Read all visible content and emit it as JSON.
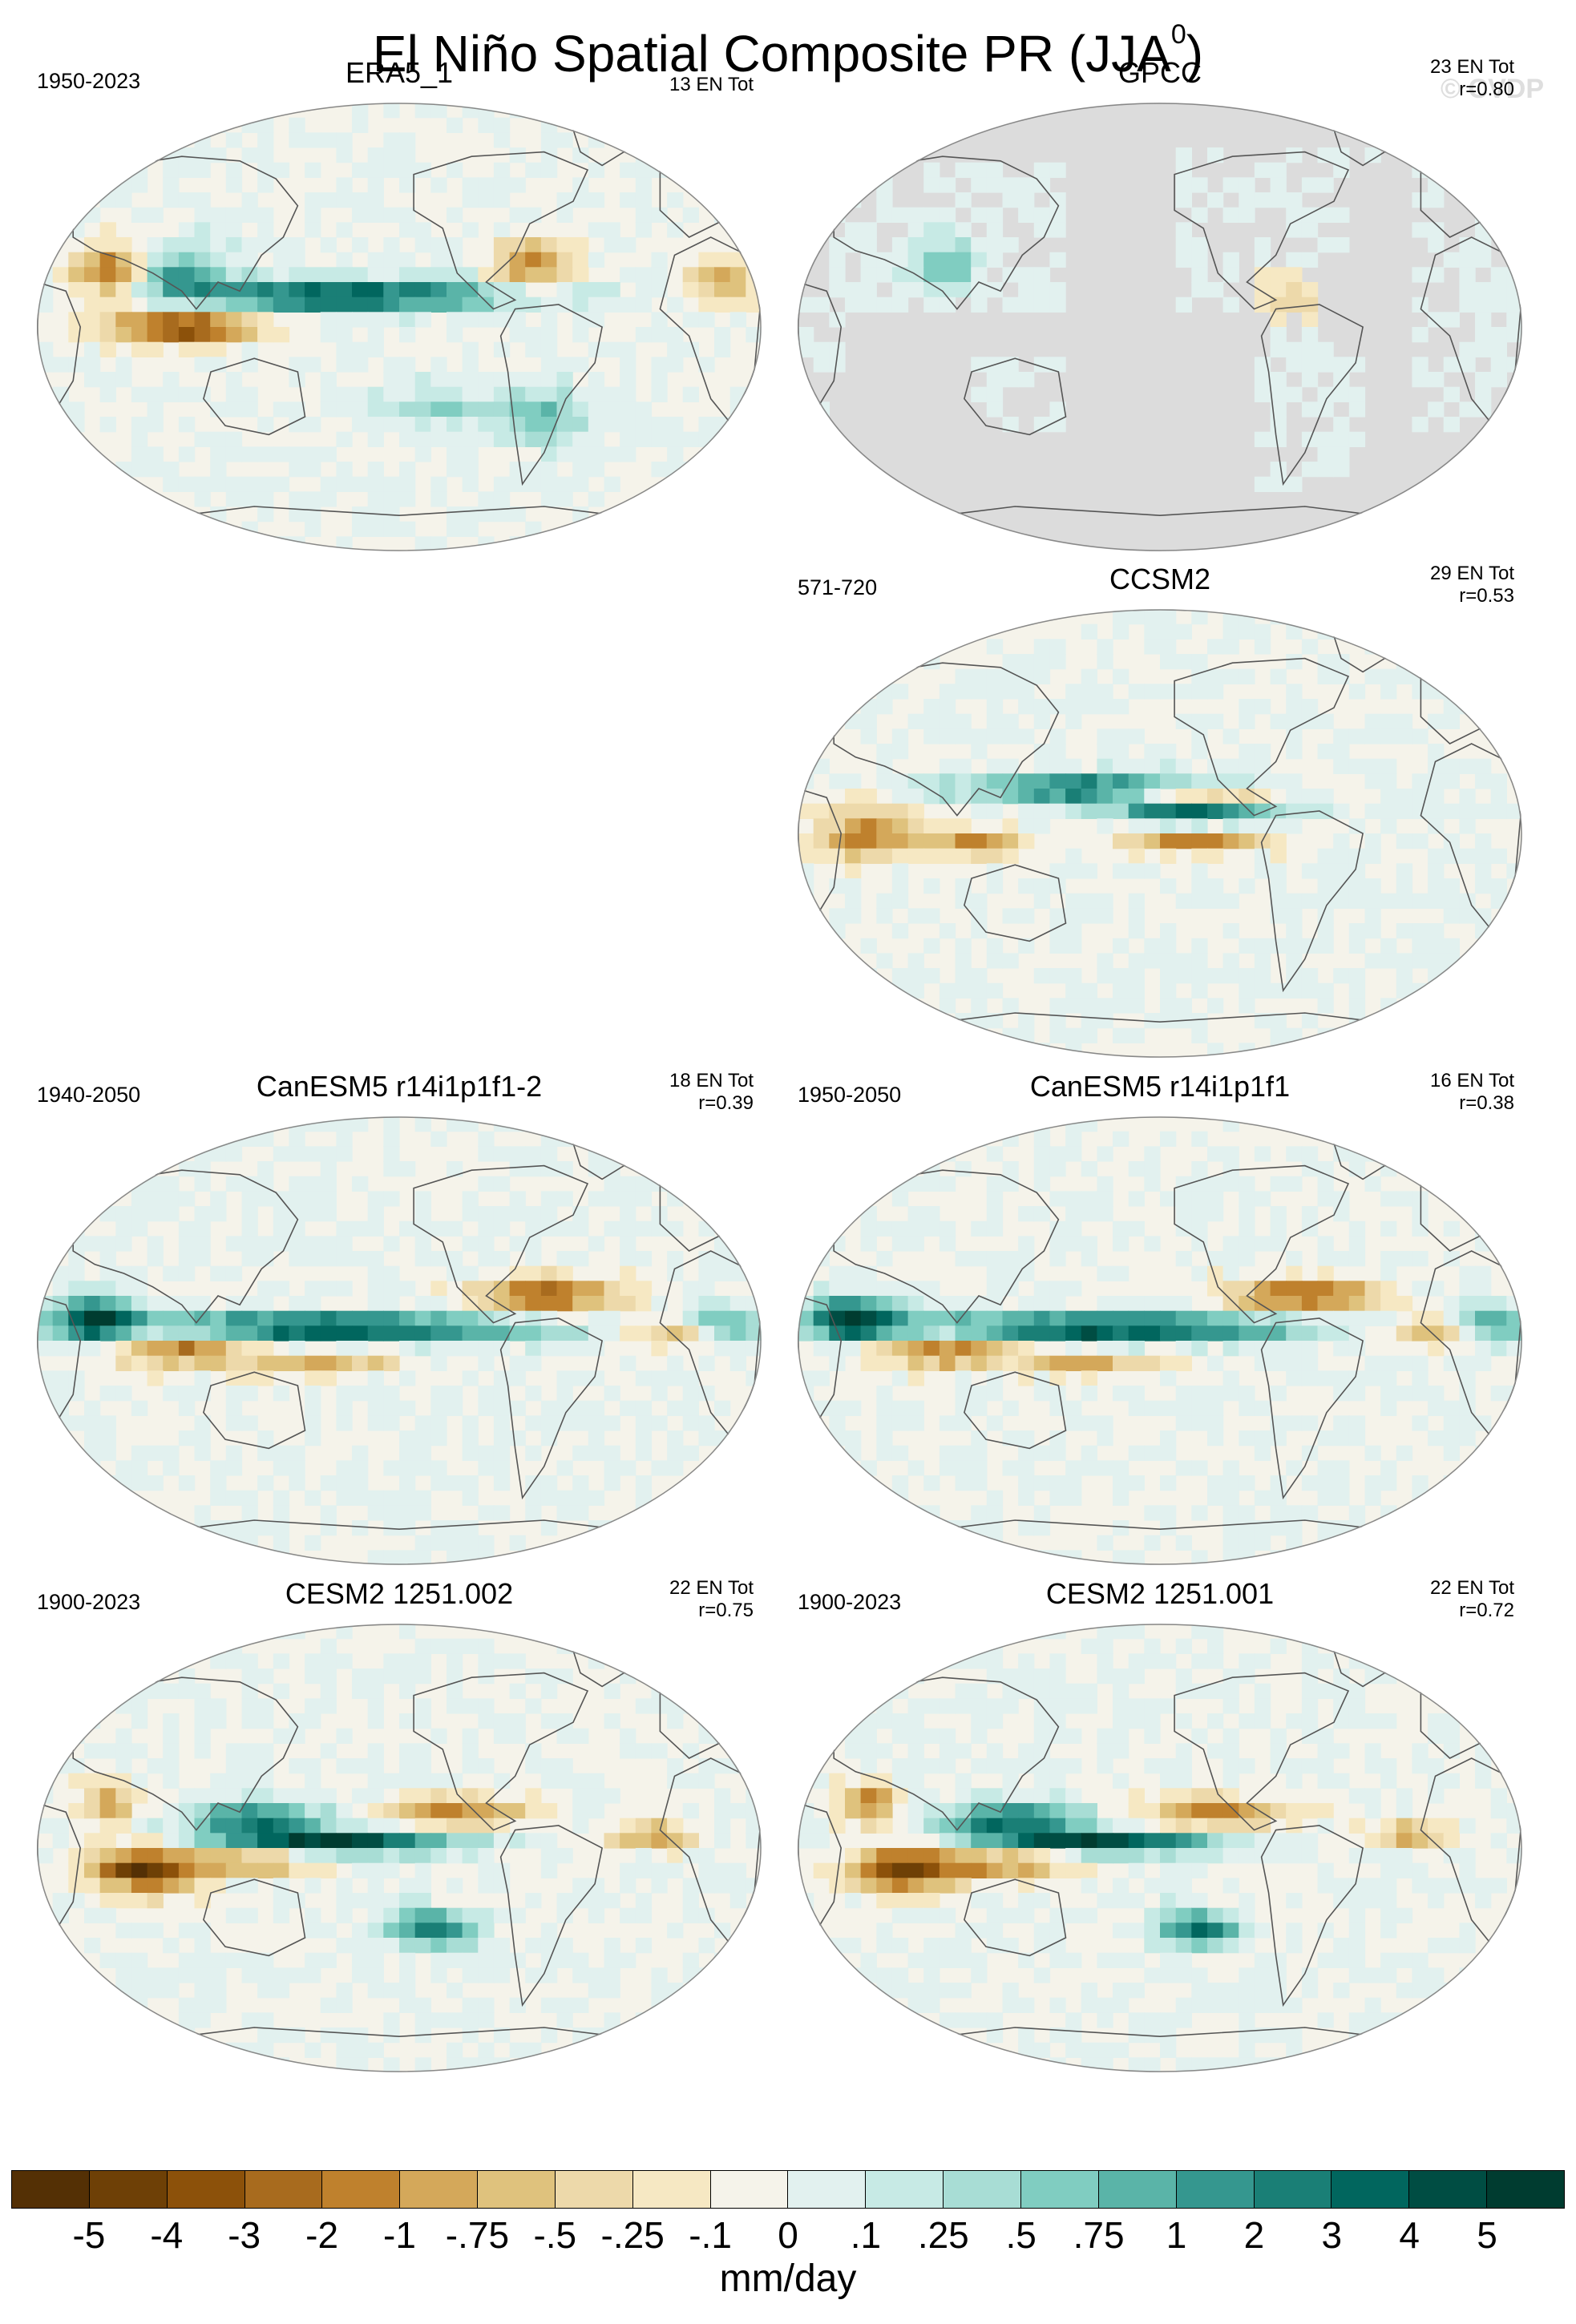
{
  "figure": {
    "title": "El Niño Spatial Composite PR (JJA",
    "title_superscript": "0",
    "title_suffix": ")",
    "watermark": "© CVDP"
  },
  "colors": {
    "land_outline": "#555555",
    "missing": "#dcdcdc",
    "map_border": "#888888"
  },
  "chart_data": {
    "type": "heatmap",
    "variable": "PR",
    "season": "JJA",
    "units": "mm/day",
    "colorbar": {
      "labels": [
        "-5",
        "-4",
        "-3",
        "-2",
        "-1",
        "-.75",
        "-.5",
        "-.25",
        "-.1",
        "0",
        ".1",
        ".25",
        ".5",
        ".75",
        "1",
        "2",
        "3",
        "4",
        "5"
      ],
      "colors": [
        "#543005",
        "#6e4006",
        "#8c510a",
        "#a86b1e",
        "#bf812d",
        "#d4a85a",
        "#dfc27d",
        "#edd9aa",
        "#f6e8c3",
        "#f5f3ea",
        "#e2f1ef",
        "#c7eae5",
        "#a8ddd5",
        "#80cdc1",
        "#5ab4a8",
        "#35978f",
        "#1a7f76",
        "#01665e",
        "#004d43",
        "#003c30"
      ]
    },
    "panels": [
      {
        "name": "ERA5_1",
        "years": "1950-2023",
        "stats": [
          "13 EN Tot"
        ],
        "pattern": "obs",
        "missing_ocean": false,
        "visible": true
      },
      {
        "name": "GPCC",
        "years": "",
        "stats": [
          "23 EN Tot",
          "r=0.80"
        ],
        "pattern": "land",
        "missing_ocean": true,
        "visible": true
      },
      {
        "name": "CCSM2",
        "years": "571-720",
        "stats": [
          "29 EN Tot",
          "r=0.53"
        ],
        "pattern": "ccsm",
        "missing_ocean": false,
        "visible": true
      },
      {
        "name": "CanESM5 r14i1p1f1-2",
        "years": "1940-2050",
        "stats": [
          "18 EN Tot",
          "r=0.39"
        ],
        "pattern": "canesm",
        "missing_ocean": false,
        "visible": true
      },
      {
        "name": "CanESM5 r14i1p1f1",
        "years": "1950-2050",
        "stats": [
          "16 EN Tot",
          "r=0.38"
        ],
        "pattern": "canesm",
        "missing_ocean": false,
        "visible": true
      },
      {
        "name": "CESM2 1251.002",
        "years": "1900-2023",
        "stats": [
          "22 EN Tot",
          "r=0.75"
        ],
        "pattern": "cesm",
        "missing_ocean": false,
        "visible": true
      },
      {
        "name": "CESM2 1251.001",
        "years": "1900-2023",
        "stats": [
          "22 EN Tot",
          "r=0.72"
        ],
        "pattern": "cesm",
        "missing_ocean": false,
        "visible": true
      }
    ]
  }
}
